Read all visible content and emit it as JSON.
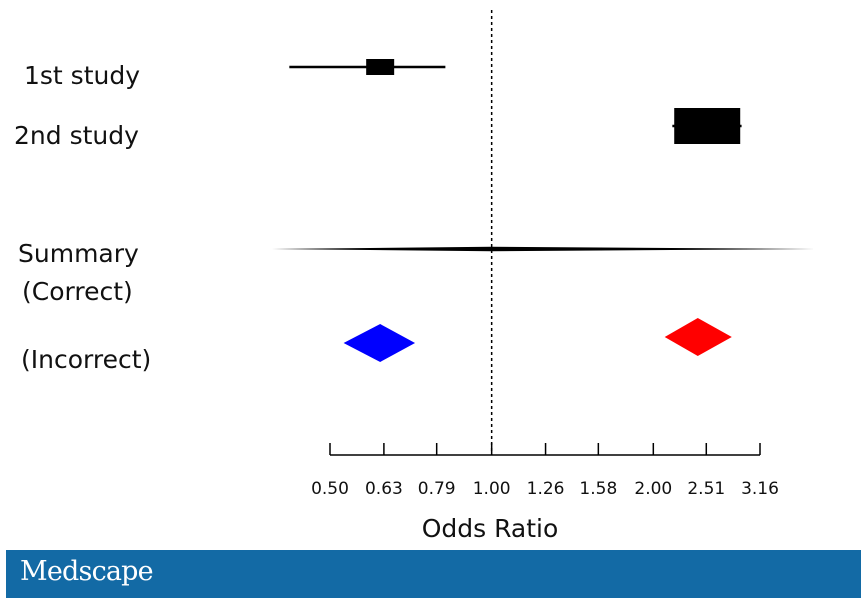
{
  "chart_data": {
    "type": "forest",
    "xlabel": "Odds Ratio",
    "x_scale": "log",
    "xlim": [
      0.5,
      3.16
    ],
    "x_ticks": [
      0.5,
      0.63,
      0.79,
      1.0,
      1.26,
      1.58,
      2.0,
      2.51,
      3.16
    ],
    "tick_labels": [
      "0.50",
      "0.63",
      "0.79",
      "1.00",
      "1.26",
      "1.58",
      "2.00",
      "2.51",
      "3.16"
    ],
    "reference_line": 1.0,
    "rows": [
      {
        "label": "1st study",
        "type": "study",
        "estimate": 0.62,
        "ci": [
          0.42,
          0.82
        ]
      },
      {
        "label": "2nd study",
        "type": "study",
        "estimate": 2.52,
        "ci": [
          2.17,
          2.92
        ]
      },
      {
        "label": "Summary",
        "type": "summary-line",
        "estimate": 1.0,
        "ci": [
          0.39,
          4.0
        ]
      },
      {
        "label": "(Correct)",
        "type": "label-only"
      },
      {
        "label": "(Incorrect)",
        "type": "diamond-pair",
        "diamonds": [
          {
            "estimate": 0.62,
            "ci": [
              0.53,
              0.72
            ],
            "color": "#0000ff"
          },
          {
            "estimate": 2.42,
            "ci": [
              2.1,
              2.8
            ],
            "color": "#ff0000"
          }
        ]
      }
    ],
    "colors": {
      "study_marker": "#000000",
      "diamond_blue": "#0000ff",
      "diamond_red": "#ff0000",
      "reference_line": "#000000"
    }
  },
  "footer": {
    "brand": "Medscape",
    "background": "#136aa5"
  }
}
